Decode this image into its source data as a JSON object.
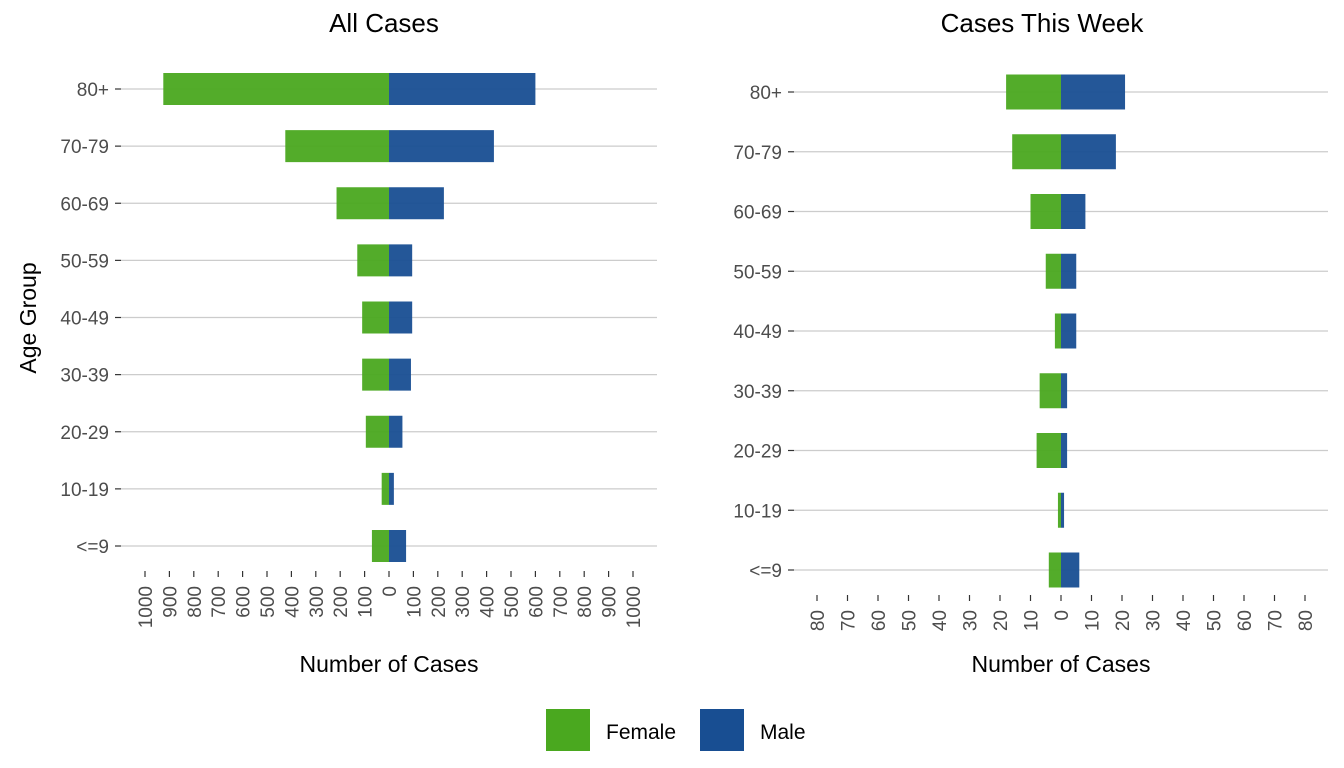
{
  "chart_data": [
    {
      "type": "bar",
      "orientation": "horizontal",
      "layout": "population-pyramid",
      "title": "All Cases",
      "xlabel": "Number of Cases",
      "ylabel": "Age Group",
      "categories": [
        "<=9",
        "10-19",
        "20-29",
        "30-39",
        "40-49",
        "50-59",
        "60-69",
        "70-79",
        "80+"
      ],
      "series": [
        {
          "name": "Female",
          "values": [
            -70,
            -30,
            -95,
            -110,
            -110,
            -130,
            -215,
            -425,
            -925
          ]
        },
        {
          "name": "Male",
          "values": [
            70,
            20,
            55,
            90,
            95,
            95,
            225,
            430,
            600
          ]
        }
      ],
      "xlim": [
        -1000,
        1000
      ],
      "xticks": [
        -1000,
        -900,
        -800,
        -700,
        -600,
        -500,
        -400,
        -300,
        -200,
        -100,
        0,
        100,
        200,
        300,
        400,
        500,
        600,
        700,
        800,
        900,
        1000
      ],
      "xtick_labels": [
        "1000",
        "900",
        "800",
        "700",
        "600",
        "500",
        "400",
        "300",
        "200",
        "100",
        "0",
        "100",
        "200",
        "300",
        "400",
        "500",
        "600",
        "700",
        "800",
        "900",
        "1000"
      ],
      "grid": true
    },
    {
      "type": "bar",
      "orientation": "horizontal",
      "layout": "population-pyramid",
      "title": "Cases This Week",
      "xlabel": "Number of Cases",
      "ylabel": "",
      "categories": [
        "<=9",
        "10-19",
        "20-29",
        "30-39",
        "40-49",
        "50-59",
        "60-69",
        "70-79",
        "80+"
      ],
      "series": [
        {
          "name": "Female",
          "values": [
            -4,
            -1,
            -8,
            -7,
            -2,
            -5,
            -10,
            -16,
            -18
          ]
        },
        {
          "name": "Male",
          "values": [
            6,
            1,
            2,
            2,
            5,
            5,
            8,
            18,
            21
          ]
        }
      ],
      "xlim": [
        -80,
        80
      ],
      "xticks": [
        -80,
        -70,
        -60,
        -50,
        -40,
        -30,
        -20,
        -10,
        0,
        10,
        20,
        30,
        40,
        50,
        60,
        70,
        80
      ],
      "xtick_labels": [
        "80",
        "70",
        "60",
        "50",
        "40",
        "30",
        "20",
        "10",
        "0",
        "10",
        "20",
        "30",
        "40",
        "50",
        "60",
        "70",
        "80"
      ],
      "grid": true
    }
  ],
  "legend": {
    "position": "bottom",
    "items": [
      {
        "label": "Female",
        "color": "#4aa81f"
      },
      {
        "label": "Male",
        "color": "#184e92"
      }
    ]
  },
  "colors": {
    "female": "#4aa81f",
    "male": "#184e92",
    "grid": "#cccccc"
  }
}
